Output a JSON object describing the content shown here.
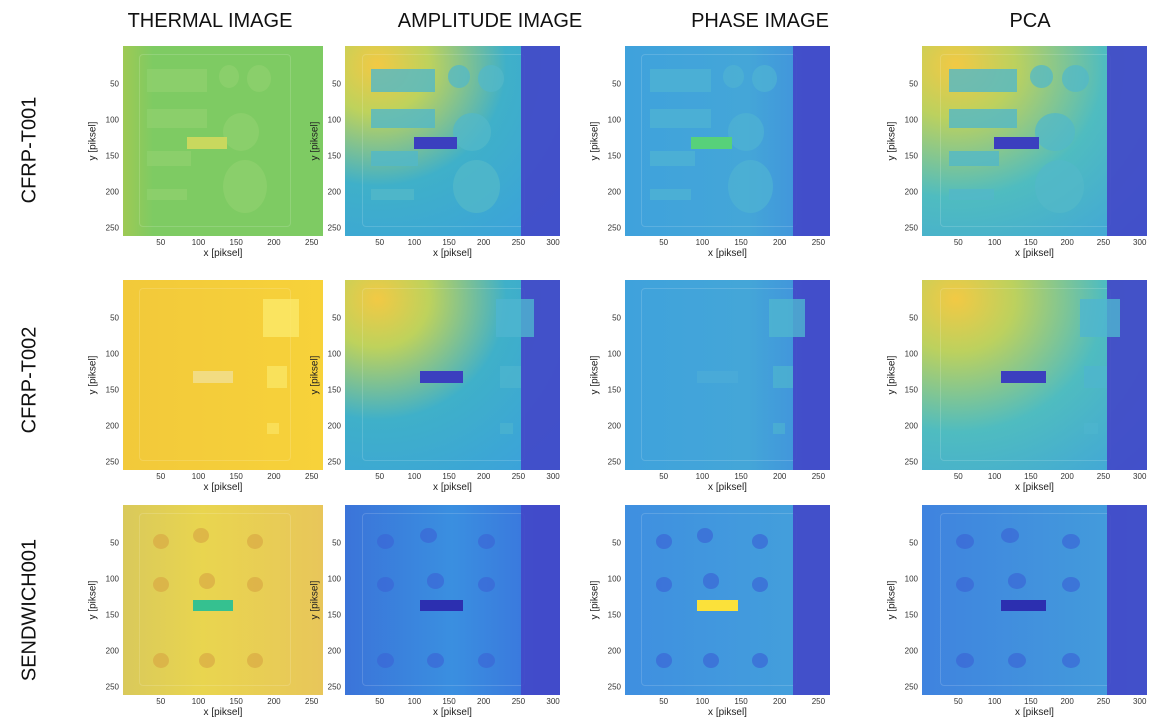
{
  "columns": [
    "THERMAL IMAGE",
    "AMPLITUDE IMAGE",
    "PHASE IMAGE",
    "PCA"
  ],
  "rows": [
    "CFRP-T001",
    "CFRP-T002",
    "SENDWICH001"
  ],
  "axis": {
    "xlabel": "x [piksel]",
    "ylabel": "y [piksel]",
    "yticks": [
      "50",
      "100",
      "150",
      "200",
      "250"
    ],
    "xticks_thermal": [
      "50",
      "100",
      "150",
      "200",
      "250"
    ],
    "xticks_amplitude": [
      "50",
      "100",
      "150",
      "200",
      "250",
      "300"
    ],
    "xticks_phase": [
      "50",
      "100",
      "150",
      "200",
      "250"
    ],
    "xticks_pca": [
      "50",
      "100",
      "150",
      "200",
      "250",
      "300"
    ]
  },
  "colors": {
    "thermal_t001": "#7ecb63",
    "thermal_t002": "#f7d23a",
    "thermal_s001": "#e9d54f",
    "amplitude": "#3fb0c9",
    "phase": "#44a6d8",
    "pca": "#4fbcc0",
    "dark_blue": "#3b3fbf",
    "yellow": "#fbe13a"
  }
}
